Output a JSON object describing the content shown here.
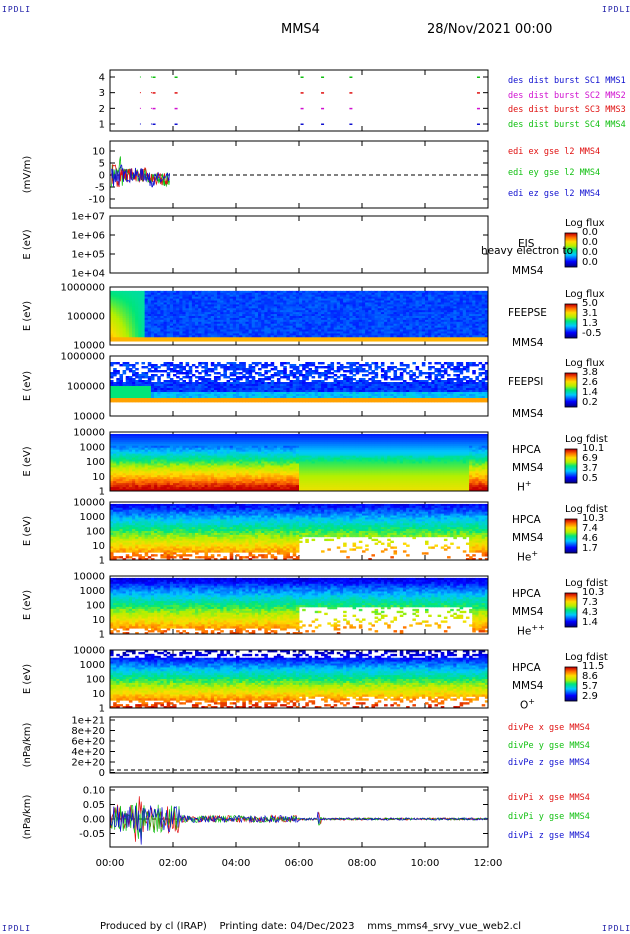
{
  "corners": {
    "label": "IPDLI"
  },
  "header": {
    "spacecraft": "MMS4",
    "date": "28/Nov/2021 00:00"
  },
  "footer": {
    "produced_by": "Produced by cl (IRAP)",
    "printing_date": "Printing date: 04/Dec/2023",
    "script": "mms_mms4_srvy_vue_web2.cl"
  },
  "colors": {
    "red": "#e01010",
    "green": "#10c010",
    "blue": "#1010d0",
    "magenta": "#d010d0"
  },
  "chart_data": {
    "type": "line",
    "x_axis": {
      "ticks": [
        "00:00",
        "02:00",
        "04:00",
        "06:00",
        "08:00",
        "10:00",
        "12:00"
      ],
      "range_hours": [
        0,
        12
      ]
    },
    "panels": [
      {
        "id": "burst",
        "ylabel": "",
        "yticks": [
          "1",
          "2",
          "3",
          "4"
        ],
        "legend": [
          {
            "text": "des dist burst SC1 MMS1",
            "color": "#1010d0"
          },
          {
            "text": "des dist burst SC2 MMS2",
            "color": "#d010d0"
          },
          {
            "text": "des dist burst SC3 MMS3",
            "color": "#e01010"
          },
          {
            "text": "des dist burst SC4 MMS4",
            "color": "#10c010"
          }
        ],
        "burst_times_hours": [
          1.35,
          2.05,
          6.05,
          6.7,
          7.6,
          11.65
        ]
      },
      {
        "id": "edi",
        "ylabel": "(mV/m)",
        "yticks": [
          "10",
          "5",
          "0",
          "-5",
          "-10"
        ],
        "ylim": [
          -10,
          12
        ],
        "legend": [
          {
            "text": "edi ex gse l2 MMS4",
            "color": "#e01010"
          },
          {
            "text": "edi ey gse l2 MMS4",
            "color": "#10c010"
          },
          {
            "text": "edi ez gse l2 MMS4",
            "color": "#1010d0"
          }
        ]
      },
      {
        "id": "eis",
        "ylabel": "E (eV)",
        "yticks": [
          "1e+07",
          "1e+06",
          "1e+05",
          "1e+04"
        ],
        "instrument": [
          "EIS",
          "MMS4"
        ],
        "overlay": "heavy electron to",
        "colorbar": {
          "title": "Log flux",
          "values": [
            "0.0",
            "0.0",
            "0.0",
            "0.0"
          ]
        }
      },
      {
        "id": "feepse",
        "ylabel": "E (eV)",
        "yticks": [
          "1000000",
          "100000",
          "10000"
        ],
        "instrument": [
          "FEEPSE",
          "MMS4"
        ],
        "colorbar": {
          "title": "Log flux",
          "values": [
            "5.0",
            "3.1",
            "1.3",
            "-0.5"
          ]
        }
      },
      {
        "id": "feepsi",
        "ylabel": "E (eV)",
        "yticks": [
          "1000000",
          "100000",
          "10000"
        ],
        "instrument": [
          "FEEPSI",
          "MMS4"
        ],
        "colorbar": {
          "title": "Log flux",
          "values": [
            "3.8",
            "2.6",
            "1.4",
            "0.2"
          ]
        }
      },
      {
        "id": "hpca_h",
        "ylabel": "E (eV)",
        "yticks": [
          "10000",
          "1000",
          "100",
          "10",
          "1"
        ],
        "instrument": [
          "HPCA",
          "MMS4"
        ],
        "species": "H",
        "species_sup": "+",
        "colorbar": {
          "title": "Log fdist",
          "values": [
            "10.1",
            "6.9",
            "3.7",
            "0.5"
          ]
        }
      },
      {
        "id": "hpca_he",
        "ylabel": "E (eV)",
        "yticks": [
          "10000",
          "1000",
          "100",
          "10",
          "1"
        ],
        "instrument": [
          "HPCA",
          "MMS4"
        ],
        "species": "He",
        "species_sup": "+",
        "colorbar": {
          "title": "Log fdist",
          "values": [
            "10.3",
            "7.4",
            "4.6",
            "1.7"
          ]
        }
      },
      {
        "id": "hpca_hepp",
        "ylabel": "E (eV)",
        "yticks": [
          "10000",
          "1000",
          "100",
          "10",
          "1"
        ],
        "instrument": [
          "HPCA",
          "MMS4"
        ],
        "species": "He",
        "species_sup": "++",
        "colorbar": {
          "title": "Log fdist",
          "values": [
            "10.3",
            "7.3",
            "4.3",
            "1.4"
          ]
        }
      },
      {
        "id": "hpca_o",
        "ylabel": "E (eV)",
        "yticks": [
          "10000",
          "1000",
          "100",
          "10",
          "1"
        ],
        "instrument": [
          "HPCA",
          "MMS4"
        ],
        "species": "O",
        "species_sup": "+",
        "colorbar": {
          "title": "Log fdist",
          "values": [
            "11.5",
            "8.6",
            "5.7",
            "2.9"
          ]
        }
      },
      {
        "id": "divpe",
        "ylabel": "(nPa/km)",
        "yticks": [
          "1e+21",
          "8e+20",
          "6e+20",
          "4e+20",
          "2e+20",
          "0"
        ],
        "legend": [
          {
            "text": "divPe x gse MMS4",
            "color": "#e01010"
          },
          {
            "text": "divPe y gse MMS4",
            "color": "#10c010"
          },
          {
            "text": "divPe z gse MMS4",
            "color": "#1010d0"
          }
        ]
      },
      {
        "id": "divpi",
        "ylabel": "(nPa/km)",
        "yticks": [
          "0.10",
          "0.05",
          "0.00",
          "-0.05"
        ],
        "ylim": [
          -0.09,
          0.11
        ],
        "legend": [
          {
            "text": "divPi x gse MMS4",
            "color": "#e01010"
          },
          {
            "text": "divPi y gse MMS4",
            "color": "#10c010"
          },
          {
            "text": "divPi z gse MMS4",
            "color": "#1010d0"
          }
        ]
      }
    ]
  }
}
